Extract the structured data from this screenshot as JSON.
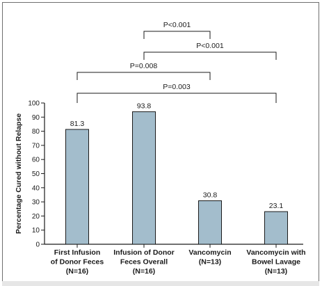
{
  "chart_data": {
    "type": "bar",
    "categories": [
      [
        "First Infusion",
        "of Donor Feces",
        "(N=16)"
      ],
      [
        "Infusion of Donor",
        "Feces Overall",
        "(N=16)"
      ],
      [
        "Vancomycin",
        "(N=13)"
      ],
      [
        "Vancomycin with",
        "Bowel Lavage",
        "(N=13)"
      ]
    ],
    "values": [
      81.3,
      93.8,
      30.8,
      23.1
    ],
    "value_labels": [
      "81.3",
      "93.8",
      "30.8",
      "23.1"
    ],
    "ylabel": "Percentage Cured without Relapse",
    "ylim": [
      0,
      100
    ],
    "yticks": [
      0,
      10,
      20,
      30,
      40,
      50,
      60,
      70,
      80,
      90,
      100
    ],
    "bar_color": "#a3bdcc",
    "comparisons": [
      {
        "from": 1,
        "to": 2,
        "label": "P<0.001"
      },
      {
        "from": 1,
        "to": 3,
        "label": "P<0.001"
      },
      {
        "from": 0,
        "to": 2,
        "label": "P=0.008"
      },
      {
        "from": 0,
        "to": 3,
        "label": "P=0.003"
      }
    ]
  }
}
